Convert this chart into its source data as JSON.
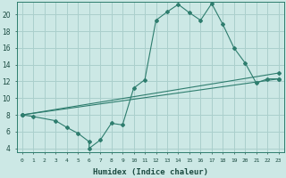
{
  "title": "",
  "xlabel": "Humidex (Indice chaleur)",
  "ylabel": "",
  "bg_color": "#cce8e5",
  "line_color": "#2e7d6e",
  "grid_color": "#aacfcc",
  "xlim": [
    -0.5,
    23.5
  ],
  "ylim": [
    3.5,
    21.5
  ],
  "yticks": [
    4,
    6,
    8,
    10,
    12,
    14,
    16,
    18,
    20
  ],
  "xticks": [
    0,
    1,
    2,
    3,
    4,
    5,
    6,
    7,
    8,
    9,
    10,
    11,
    12,
    13,
    14,
    15,
    16,
    17,
    18,
    19,
    20,
    21,
    22,
    23
  ],
  "series": [
    [
      0,
      8.0
    ],
    [
      1,
      7.8
    ],
    [
      3,
      7.3
    ],
    [
      4,
      6.5
    ],
    [
      5,
      5.8
    ],
    [
      6,
      4.8
    ],
    [
      6,
      4.0
    ],
    [
      7,
      5.0
    ],
    [
      8,
      7.0
    ],
    [
      9,
      6.8
    ],
    [
      10,
      11.2
    ],
    [
      11,
      12.2
    ],
    [
      12,
      19.3
    ],
    [
      13,
      20.3
    ],
    [
      14,
      21.2
    ],
    [
      15,
      20.2
    ],
    [
      16,
      19.3
    ],
    [
      17,
      21.3
    ],
    [
      18,
      18.8
    ],
    [
      19,
      16.0
    ],
    [
      20,
      14.2
    ],
    [
      21,
      11.8
    ],
    [
      22,
      12.3
    ],
    [
      23,
      12.3
    ]
  ],
  "line2_x": [
    0,
    23
  ],
  "line2_y": [
    8.0,
    12.3
  ],
  "line3_x": [
    0,
    23
  ],
  "line3_y": [
    8.0,
    13.0
  ]
}
